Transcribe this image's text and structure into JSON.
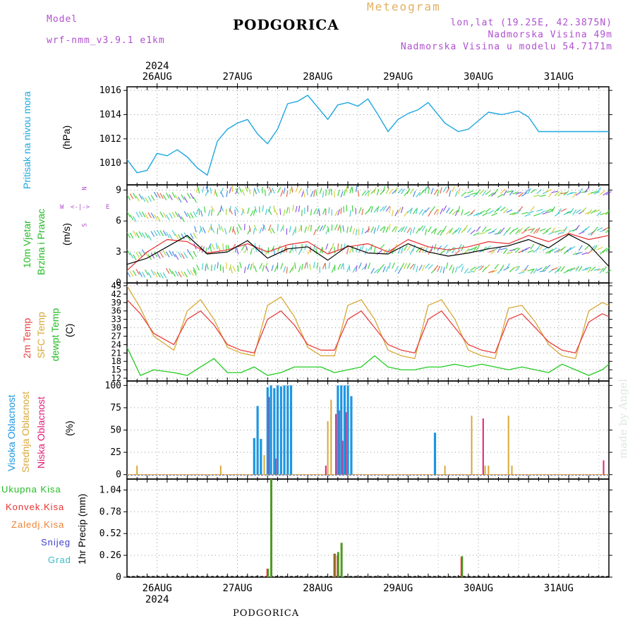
{
  "header": {
    "model_label": "Model",
    "model_value": "wrf-nmm_v3.9.1 e1km",
    "title": "PODGORICA",
    "product": "Meteogram",
    "coords": "lon,lat (19.25E, 42.3875N)",
    "elevation": "Nadmorska Visina 49m",
    "model_elevation": "Nadmorska Visina u modelu 54.7171m",
    "footer_title": "PODGORICA",
    "watermark": "made by Angel"
  },
  "dates": {
    "year": "2024",
    "days": [
      "26AUG",
      "27AUG",
      "28AUG",
      "29AUG",
      "30AUG",
      "31AUG"
    ]
  },
  "colors": {
    "pressure": "#1ea7e0",
    "wind_speed": "#000000",
    "wind_gust": "#e83030",
    "t2m": "#e84040",
    "sfc": "#d8a838",
    "dewpt": "#22cc22",
    "cloud_high": "#1e96e0",
    "cloud_mid": "#d8a838",
    "cloud_low": "#e0207a",
    "precip_total": "#4c9a20",
    "precip_conv": "#e83030",
    "precip_frozen": "#f08030",
    "precip_snow": "#4040d0",
    "precip_hail": "#40b8c8"
  },
  "panels": {
    "pressure": {
      "label": "Pritisak na nivou mora",
      "unit": "(hPa)"
    },
    "wind": {
      "label1": "10m Vjetar",
      "label2": "Brzina i Pravac",
      "unit": "(m/s)",
      "compass_n": "N",
      "compass_s": "S",
      "compass_w": "W",
      "compass_e": "E"
    },
    "temp": {
      "label1": "2m Temp",
      "label2": "SFC Temp",
      "label3": "dewpt Temp",
      "unit": "(C)"
    },
    "cloud": {
      "label1": "Visoka Oblacnost",
      "label2": "Srednja Oblacnost",
      "label3": "Niska Oblacnost",
      "unit": "(%)"
    },
    "precip": {
      "legend": [
        "Ukupna Kisa",
        "Konvek.Kisa",
        "Zaledj.Kisa",
        "Snijeg",
        "Grad"
      ],
      "unit": "1hr Precip (mm)"
    }
  },
  "chart_data": [
    {
      "type": "line",
      "name": "pressure",
      "ylabel": "(hPa)",
      "ylim": [
        1008.2,
        1016.3
      ],
      "yticks": [
        1010,
        1012,
        1014,
        1016
      ],
      "x_start": "2024-08-25 15:00",
      "x_end": "2024-08-31 15:00",
      "grid": true,
      "series": [
        {
          "name": "Pritisak na nivou mora",
          "x_hours": [
            0,
            3,
            6,
            9,
            12,
            15,
            18,
            21,
            24,
            27,
            30,
            33,
            36,
            39,
            42,
            45,
            48,
            51,
            54,
            57,
            60,
            63,
            66,
            69,
            72,
            75,
            78,
            81,
            84,
            87,
            90,
            95,
            99,
            102,
            108,
            112,
            117,
            120,
            123,
            126,
            129,
            132,
            135,
            138,
            141,
            144
          ],
          "values": [
            1010.3,
            1009.2,
            1009.4,
            1010.8,
            1010.6,
            1011.1,
            1010.5,
            1009.6,
            1009.0,
            1011.8,
            1012.8,
            1013.3,
            1013.6,
            1012.4,
            1011.6,
            1012.8,
            1014.9,
            1015.1,
            1015.6,
            1014.6,
            1013.6,
            1014.8,
            1015.0,
            1014.7,
            1015.3,
            1014.0,
            1012.6,
            1013.6,
            1014.1,
            1014.4,
            1015.0,
            1013.3,
            1012.6,
            1012.8,
            1014.2,
            1014.0,
            1014.3,
            1013.8,
            1012.6,
            1012.6,
            1012.6,
            1012.6,
            1012.6,
            1012.6,
            1012.6,
            1012.6
          ]
        }
      ]
    },
    {
      "type": "line",
      "name": "wind",
      "ylabel": "(m/s)",
      "ylim": [
        0,
        9.5
      ],
      "yticks": [
        0,
        3,
        6,
        9
      ],
      "grid": true,
      "series": [
        {
          "name": "wind_speed",
          "x_hours": [
            0,
            6,
            12,
            18,
            24,
            30,
            36,
            42,
            48,
            54,
            60,
            66,
            72,
            78,
            84,
            90,
            96,
            102,
            108,
            114,
            120,
            126,
            132,
            138,
            144
          ],
          "values": [
            1.8,
            2.4,
            3.5,
            4.6,
            2.8,
            3.0,
            4.1,
            2.4,
            3.3,
            3.5,
            2.2,
            3.6,
            2.9,
            2.8,
            3.8,
            3.0,
            2.6,
            2.9,
            3.3,
            3.6,
            4.2,
            3.4,
            4.7,
            3.7,
            1.6
          ]
        },
        {
          "name": "wind_gust",
          "x_hours": [
            0,
            6,
            12,
            18,
            24,
            30,
            36,
            42,
            48,
            54,
            60,
            66,
            72,
            78,
            84,
            90,
            96,
            102,
            108,
            114,
            120,
            126,
            132,
            138,
            144
          ],
          "values": [
            1.2,
            3.0,
            4.2,
            4.0,
            2.9,
            3.2,
            3.8,
            3.0,
            3.7,
            4.0,
            2.8,
            3.5,
            3.8,
            3.0,
            4.2,
            3.5,
            3.2,
            3.5,
            4.0,
            3.8,
            4.6,
            4.0,
            4.8,
            4.2,
            4.6
          ]
        }
      ]
    },
    {
      "type": "line",
      "name": "temperature",
      "ylabel": "(C)",
      "ylim": [
        11,
        46
      ],
      "yticks": [
        12,
        15,
        18,
        21,
        24,
        27,
        30,
        33,
        36,
        39,
        42,
        45
      ],
      "grid": true,
      "series": [
        {
          "name": "2m Temp",
          "x_hours": [
            0,
            4,
            8,
            14,
            18,
            22,
            26,
            30,
            34,
            38,
            42,
            46,
            50,
            54,
            58,
            62,
            66,
            70,
            74,
            78,
            82,
            86,
            90,
            94,
            98,
            102,
            106,
            110,
            114,
            118,
            122,
            126,
            130,
            134,
            138,
            142,
            144
          ],
          "values": [
            40,
            35,
            28,
            24,
            33,
            36,
            31,
            24,
            22,
            21,
            33,
            36,
            31,
            24,
            22,
            22,
            33,
            36,
            30,
            24,
            22,
            21,
            33,
            36,
            30,
            24,
            22,
            21,
            33,
            35,
            30,
            25,
            22,
            21,
            32,
            35,
            34
          ]
        },
        {
          "name": "SFC Temp",
          "x_hours": [
            0,
            4,
            8,
            14,
            18,
            22,
            26,
            30,
            34,
            38,
            42,
            46,
            50,
            54,
            58,
            62,
            66,
            70,
            74,
            78,
            82,
            86,
            90,
            94,
            98,
            102,
            106,
            110,
            114,
            118,
            122,
            126,
            130,
            134,
            138,
            142,
            144
          ],
          "values": [
            45,
            37,
            27,
            22,
            36,
            40,
            33,
            23,
            21,
            20,
            38,
            41,
            34,
            23,
            20,
            20,
            38,
            40,
            33,
            22,
            20,
            19,
            38,
            40,
            33,
            22,
            20,
            19,
            37,
            38,
            32,
            24,
            20,
            19,
            36,
            39,
            38
          ]
        },
        {
          "name": "dewpt Temp",
          "x_hours": [
            0,
            4,
            8,
            14,
            18,
            22,
            26,
            30,
            34,
            38,
            42,
            46,
            50,
            54,
            58,
            62,
            66,
            70,
            74,
            78,
            82,
            86,
            90,
            94,
            98,
            102,
            106,
            110,
            114,
            118,
            122,
            126,
            130,
            134,
            138,
            142,
            144
          ],
          "values": [
            23,
            13,
            15,
            14,
            13,
            16,
            19,
            14,
            14,
            16,
            13,
            14,
            16,
            16,
            16,
            14,
            15,
            16,
            20,
            16,
            15,
            15,
            16,
            16,
            17,
            16,
            17,
            16,
            15,
            16,
            15,
            14,
            17,
            15,
            13,
            15,
            17
          ]
        }
      ]
    },
    {
      "type": "bar",
      "name": "cloud",
      "ylabel": "(%)",
      "ylim": [
        -5,
        105
      ],
      "yticks": [
        0,
        25,
        50,
        75,
        100
      ],
      "grid": true,
      "series": [
        {
          "name": "Visoka Oblacnost",
          "x_hours": [
            38,
            39,
            40,
            42,
            43,
            44,
            45,
            46,
            47,
            48,
            49,
            63,
            64,
            65,
            66,
            67,
            92
          ],
          "values": [
            41,
            77,
            40,
            98,
            100,
            97,
            100,
            99,
            100,
            100,
            100,
            100,
            100,
            100,
            100,
            88,
            47
          ]
        },
        {
          "name": "Srednja Oblacnost",
          "x_hours": [
            3,
            28,
            41,
            60,
            61,
            95,
            103,
            107,
            108,
            114,
            115
          ],
          "values": [
            10,
            10,
            22,
            60,
            84,
            10,
            66,
            10,
            10,
            66,
            10
          ]
        },
        {
          "name": "Niska Oblacnost",
          "x_hours": [
            42,
            44,
            59,
            62,
            63,
            64,
            65,
            106,
            142
          ],
          "values": [
            87,
            18,
            10,
            68,
            72,
            38,
            70,
            63,
            16
          ]
        }
      ]
    },
    {
      "type": "bar",
      "name": "precipitation",
      "ylabel": "1hr Precip (mm)",
      "ylim": [
        0,
        1.17
      ],
      "yticks": [
        0,
        0.26,
        0.52,
        0.78,
        1.04
      ],
      "grid": true,
      "series": [
        {
          "name": "Ukupna Kisa",
          "x_hours": [
            42,
            43,
            62,
            63,
            64,
            100
          ],
          "values": [
            0.1,
            1.17,
            0.28,
            0.3,
            0.41,
            0.25
          ]
        },
        {
          "name": "Konvek.Kisa",
          "x_hours": [
            42,
            62,
            63,
            100
          ],
          "values": [
            0.1,
            0.28,
            0.26,
            0.24
          ]
        }
      ]
    }
  ]
}
